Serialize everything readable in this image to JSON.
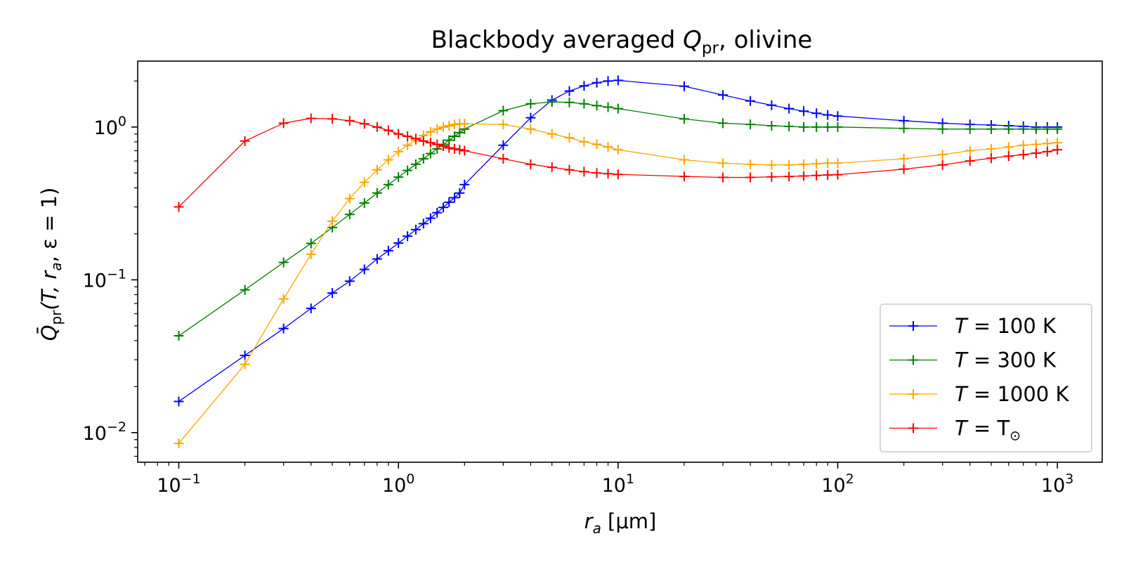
{
  "chart_data": {
    "type": "line",
    "title_parts": {
      "prefix": "Blackbody averaged ",
      "var": "Q",
      "sub": "pr",
      "suffix": ", olivine"
    },
    "xlabel_parts": {
      "var": "r",
      "sub": "a",
      "unit": " [μm]"
    },
    "ylabel_parts": {
      "var": "Q̄",
      "sub": "pr",
      "rest": "(T, r",
      "rest_sub": "a",
      "tail": ", ε = 1)"
    },
    "x_scale": "log",
    "y_scale": "log",
    "xlim": [
      0.065,
      1600
    ],
    "ylim": [
      0.0064,
      2.7
    ],
    "x_ticks": [
      {
        "value": 0.1,
        "base": "10",
        "exp": "−1"
      },
      {
        "value": 1,
        "base": "10",
        "exp": "0"
      },
      {
        "value": 10,
        "base": "10",
        "exp": "1"
      },
      {
        "value": 100,
        "base": "10",
        "exp": "2"
      },
      {
        "value": 1000,
        "base": "10",
        "exp": "3"
      }
    ],
    "y_ticks": [
      {
        "value": 0.01,
        "base": "10",
        "exp": "−2"
      },
      {
        "value": 0.1,
        "base": "10",
        "exp": "−1"
      },
      {
        "value": 1,
        "base": "10",
        "exp": "0"
      }
    ],
    "grid": false,
    "legend_position": "lower-right",
    "x": [
      0.1,
      0.2,
      0.3,
      0.4,
      0.5,
      0.6,
      0.7,
      0.8,
      0.9,
      1.0,
      1.1,
      1.2,
      1.3,
      1.4,
      1.5,
      1.6,
      1.7,
      1.8,
      1.9,
      2.0,
      3,
      4,
      5,
      6,
      7,
      8,
      9,
      10,
      20,
      30,
      40,
      50,
      60,
      70,
      80,
      90,
      100,
      200,
      300,
      400,
      500,
      600,
      700,
      800,
      900,
      1000
    ],
    "series": [
      {
        "name_var": "T",
        "name_rest": " = 100 K",
        "color": "#0000ff",
        "values": [
          0.016,
          0.032,
          0.048,
          0.065,
          0.082,
          0.098,
          0.117,
          0.137,
          0.155,
          0.174,
          0.193,
          0.213,
          0.233,
          0.253,
          0.275,
          0.298,
          0.322,
          0.345,
          0.37,
          0.42,
          0.76,
          1.15,
          1.5,
          1.72,
          1.86,
          1.95,
          2.0,
          2.02,
          1.85,
          1.62,
          1.48,
          1.39,
          1.32,
          1.27,
          1.23,
          1.2,
          1.18,
          1.1,
          1.06,
          1.04,
          1.03,
          1.02,
          1.01,
          1.0,
          1.0,
          1.0
        ]
      },
      {
        "name_var": "T",
        "name_rest": " = 300 K",
        "color": "#008000",
        "values": [
          0.043,
          0.086,
          0.13,
          0.173,
          0.22,
          0.268,
          0.318,
          0.37,
          0.42,
          0.47,
          0.52,
          0.57,
          0.62,
          0.67,
          0.72,
          0.77,
          0.82,
          0.87,
          0.92,
          0.97,
          1.28,
          1.42,
          1.46,
          1.45,
          1.42,
          1.38,
          1.35,
          1.32,
          1.13,
          1.06,
          1.04,
          1.02,
          1.01,
          1.0,
          1.0,
          1.0,
          1.0,
          0.98,
          0.97,
          0.97,
          0.97,
          0.97,
          0.97,
          0.97,
          0.97,
          0.97
        ]
      },
      {
        "name_var": "T",
        "name_rest": " = 1000 K",
        "color": "#ffa500",
        "values": [
          0.0085,
          0.028,
          0.075,
          0.147,
          0.242,
          0.34,
          0.435,
          0.525,
          0.61,
          0.69,
          0.76,
          0.82,
          0.88,
          0.93,
          0.97,
          1.0,
          1.02,
          1.04,
          1.05,
          1.05,
          1.04,
          0.97,
          0.9,
          0.85,
          0.8,
          0.77,
          0.74,
          0.71,
          0.61,
          0.58,
          0.57,
          0.565,
          0.565,
          0.57,
          0.575,
          0.58,
          0.58,
          0.62,
          0.66,
          0.7,
          0.72,
          0.74,
          0.76,
          0.77,
          0.78,
          0.79
        ]
      },
      {
        "name_var": "T",
        "name_rest": " = T",
        "name_sub": "⊙",
        "color": "#ff0000",
        "values": [
          0.3,
          0.81,
          1.06,
          1.14,
          1.13,
          1.1,
          1.05,
          1.0,
          0.95,
          0.9,
          0.87,
          0.84,
          0.81,
          0.79,
          0.77,
          0.75,
          0.73,
          0.72,
          0.71,
          0.7,
          0.62,
          0.57,
          0.545,
          0.525,
          0.51,
          0.5,
          0.495,
          0.49,
          0.475,
          0.468,
          0.468,
          0.472,
          0.475,
          0.478,
          0.482,
          0.485,
          0.488,
          0.53,
          0.565,
          0.6,
          0.625,
          0.645,
          0.66,
          0.675,
          0.69,
          0.71
        ]
      }
    ]
  }
}
